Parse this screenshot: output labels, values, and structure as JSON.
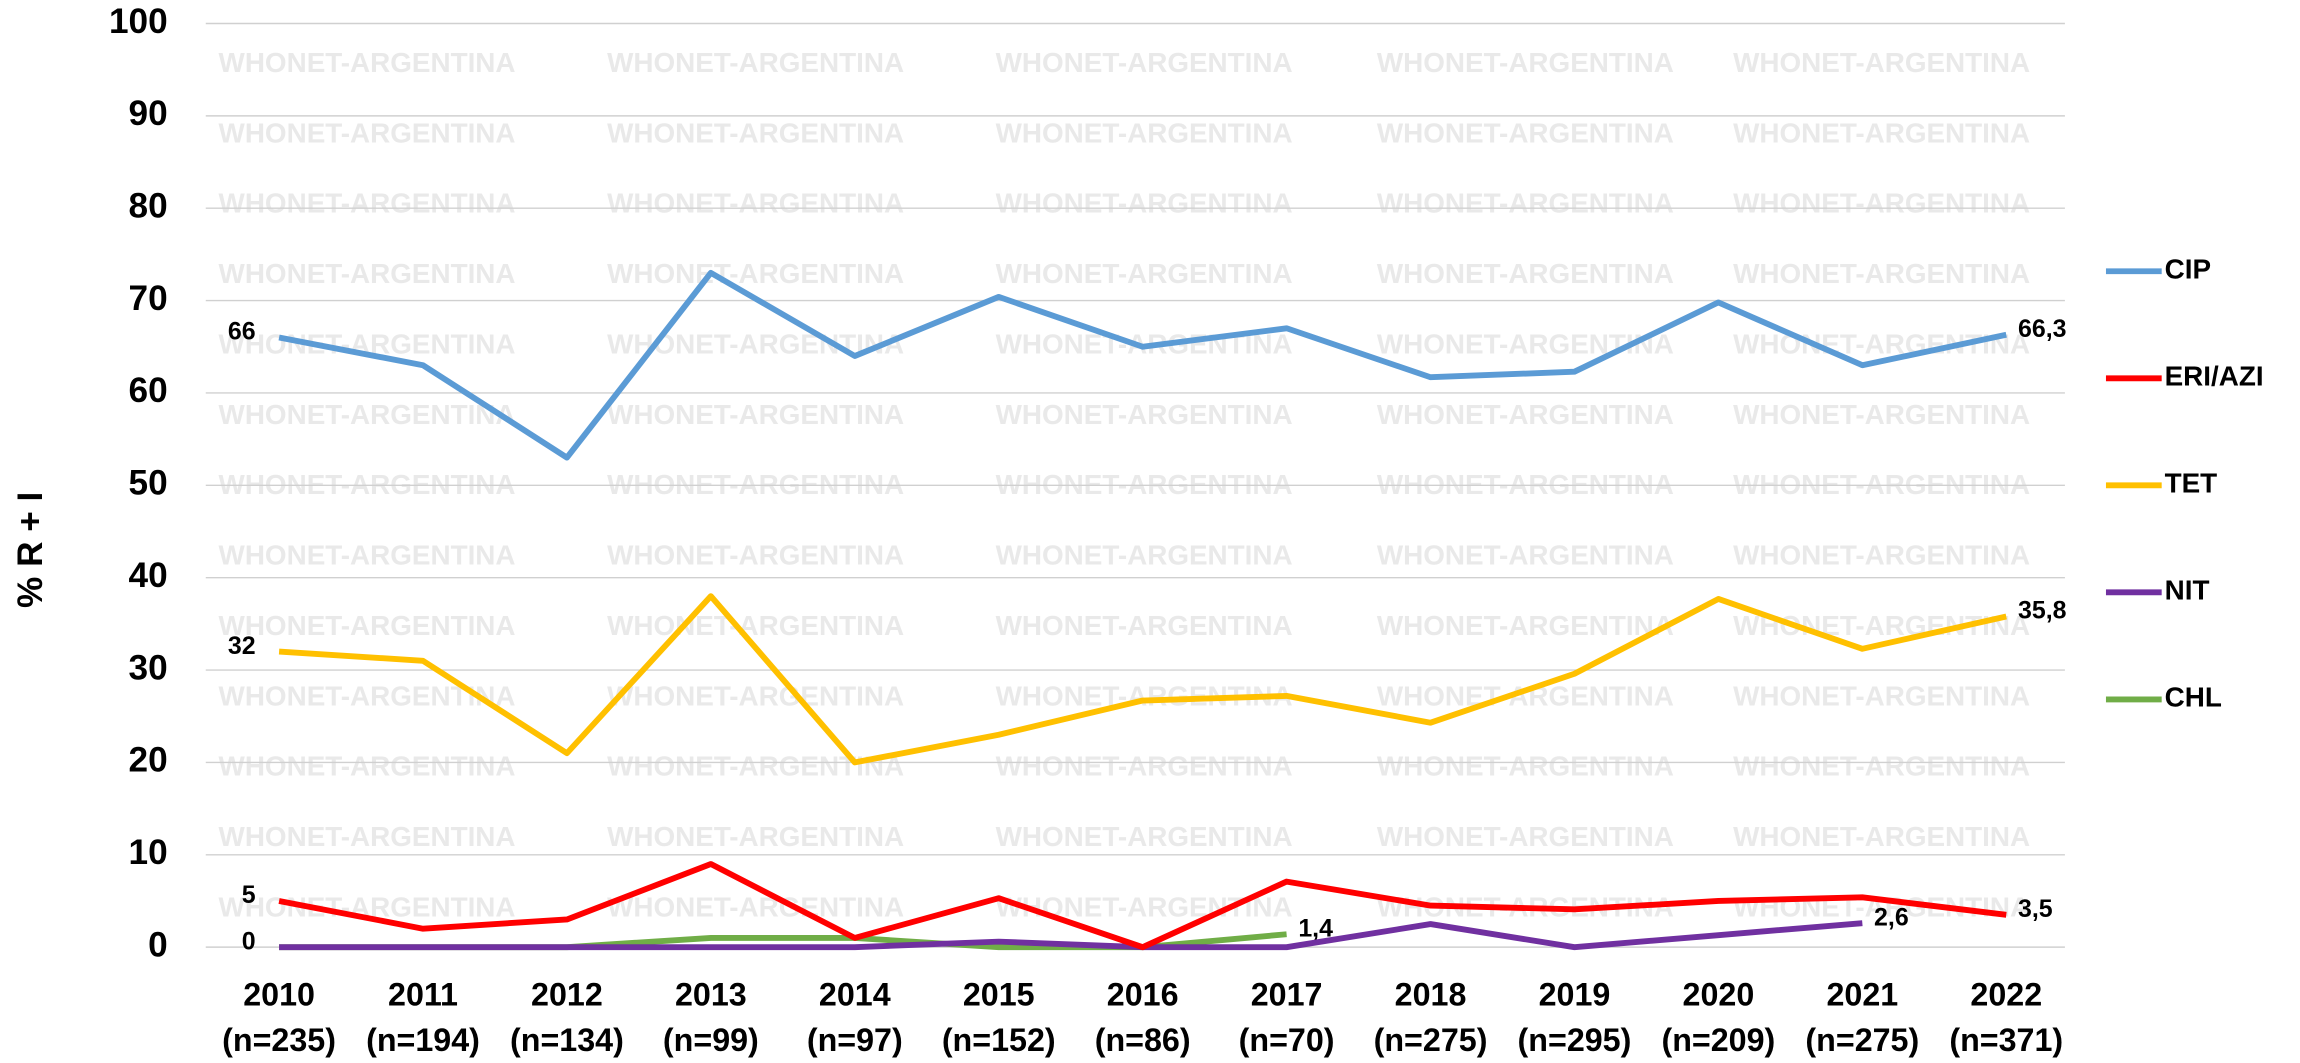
{
  "chart_data": {
    "type": "line",
    "y_label": "% R + I",
    "watermark": "WHONET-ARGENTINA",
    "categories": [
      "2010",
      "2011",
      "2012",
      "2013",
      "2014",
      "2015",
      "2016",
      "2017",
      "2018",
      "2019",
      "2020",
      "2021",
      "2022"
    ],
    "sample_sizes": [
      "(n=235)",
      "(n=194)",
      "(n=134)",
      "(n=99)",
      "(n=97)",
      "(n=152)",
      "(n=86)",
      "(n=70)",
      "(n=275)",
      "(n=295)",
      "(n=209)",
      "(n=275)",
      "(n=371)"
    ],
    "ylim": [
      0,
      100
    ],
    "yticks": [
      0,
      10,
      20,
      30,
      40,
      50,
      60,
      70,
      80,
      90,
      100
    ],
    "grid": true,
    "legend": "right",
    "series": [
      {
        "name": "CIP",
        "color": "#5b9bd5",
        "values": [
          66,
          63,
          53,
          73,
          64,
          70.4,
          65,
          67,
          61.7,
          62.3,
          69.8,
          63,
          66.3
        ],
        "value_labels": [
          "66",
          null,
          null,
          null,
          null,
          null,
          null,
          null,
          null,
          null,
          null,
          null,
          "66,3"
        ]
      },
      {
        "name": "ERI/AZI",
        "color": "#ff0000",
        "values": [
          5,
          2,
          3,
          9,
          1,
          5.3,
          0,
          7.1,
          4.5,
          4.1,
          5,
          5.4,
          3.5
        ],
        "value_labels": [
          "5",
          null,
          null,
          null,
          null,
          null,
          null,
          null,
          null,
          null,
          null,
          null,
          "3,5"
        ]
      },
      {
        "name": "TET",
        "color": "#ffc000",
        "values": [
          32,
          31,
          21,
          38,
          20,
          23,
          26.7,
          27.2,
          24.3,
          29.6,
          37.7,
          32.3,
          35.8
        ],
        "value_labels": [
          "32",
          null,
          null,
          null,
          null,
          null,
          null,
          null,
          null,
          null,
          null,
          null,
          "35,8"
        ]
      },
      {
        "name": "NIT",
        "color": "#7030a0",
        "values": [
          0,
          0,
          0,
          0,
          0,
          0.6,
          0,
          0,
          2.5,
          0,
          1.3,
          2.6,
          null
        ],
        "value_labels": [
          null,
          null,
          null,
          null,
          null,
          null,
          null,
          null,
          null,
          null,
          null,
          "2,6",
          null
        ]
      },
      {
        "name": "CHL",
        "color": "#70ad47",
        "values": [
          0,
          0,
          0,
          1,
          1,
          0,
          0,
          1.4,
          null,
          null,
          null,
          null,
          null
        ],
        "value_labels": [
          "0",
          null,
          null,
          null,
          null,
          null,
          null,
          "1,4",
          null,
          null,
          null,
          null,
          null
        ]
      }
    ]
  }
}
